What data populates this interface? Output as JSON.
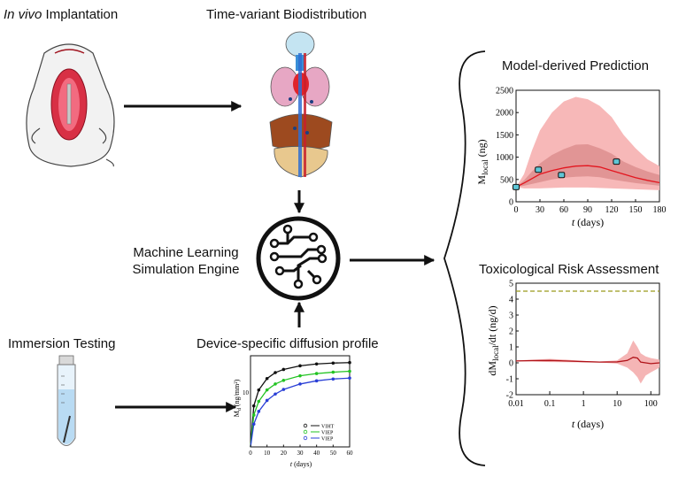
{
  "labels": {
    "implant_em": "In vivo",
    "implant_rest": " Implantation",
    "biodistribution": "Time-variant Biodistribution",
    "ml_line1": "Machine Learning",
    "ml_line2": "Simulation Engine",
    "immersion": "Immersion Testing",
    "diffusion": "Device-specific diffusion profile"
  },
  "prediction_chart": {
    "title": "Model-derived Prediction",
    "ylabel": "M_local (ng)",
    "ylabel_main": "M",
    "ylabel_sub": "local",
    "ylabel_unit": " (ng)",
    "xlabel_var": "t",
    "xlabel_unit": " (days)",
    "xticks": [
      "0",
      "30",
      "60",
      "90",
      "120",
      "150",
      "180"
    ],
    "yticks": [
      "0",
      "500",
      "1000",
      "1500",
      "2000",
      "2500"
    ]
  },
  "risk_chart": {
    "title": "Toxicological Risk Assessment",
    "ylabel_pre": "dM",
    "ylabel_sub": "local",
    "ylabel_post": "/dt (ng/d)",
    "xlabel_var": "t",
    "xlabel_unit": " (days)",
    "xticks": [
      "0.01",
      "0.1",
      "1",
      "10",
      "100"
    ],
    "yticks": [
      "-2",
      "-1",
      "0",
      "1",
      "2",
      "3",
      "4",
      "5"
    ]
  },
  "diffusion_chart": {
    "ylabel": "M_d (ng/mm²)",
    "ylabel_main": "M",
    "ylabel_sub": "d",
    "ylabel_unit": " (ng/mm²)",
    "xlabel_var": "t",
    "xlabel_unit": " (days)",
    "xticks": [
      "0",
      "10",
      "20",
      "30",
      "40",
      "50",
      "60"
    ],
    "ytick": "10",
    "legend": [
      "VIHT",
      "VIEP",
      "VIEP"
    ]
  },
  "chart_data": [
    {
      "type": "line",
      "title": "Model-derived Prediction",
      "xlabel": "t (days)",
      "ylabel": "M_local (ng)",
      "xlim": [
        0,
        180
      ],
      "ylim": [
        0,
        2500
      ],
      "series": [
        {
          "x": [
            0,
            10,
            20,
            30,
            45,
            60,
            75,
            90,
            105,
            120,
            135,
            150,
            165,
            180
          ],
          "values": [
            330,
            420,
            520,
            620,
            700,
            760,
            800,
            810,
            780,
            700,
            620,
            540,
            480,
            430
          ]
        }
      ],
      "points": {
        "x": [
          0,
          28,
          57,
          126
        ],
        "values": [
          330,
          720,
          600,
          900
        ]
      },
      "band_outer_upper": [
        330,
        620,
        1150,
        1600,
        2000,
        2250,
        2350,
        2300,
        2150,
        1900,
        1500,
        1200,
        950,
        800
      ],
      "band_outer_lower": [
        330,
        300,
        300,
        300,
        310,
        320,
        320,
        320,
        310,
        300,
        290,
        280,
        270,
        260
      ],
      "band_inner_upper": [
        330,
        480,
        680,
        860,
        1050,
        1180,
        1280,
        1290,
        1200,
        1080,
        900,
        780,
        680,
        600
      ],
      "band_inner_lower": [
        330,
        360,
        400,
        440,
        500,
        540,
        560,
        570,
        550,
        500,
        460,
        420,
        390,
        360
      ],
      "grid": false
    },
    {
      "type": "line",
      "title": "Toxicological Risk Assessment",
      "xlabel": "t (days)",
      "ylabel": "dM_local/dt (ng/d)",
      "xscale": "log",
      "xlim": [
        0.01,
        180
      ],
      "ylim": [
        -2,
        5
      ],
      "threshold": 4.5,
      "series": [
        {
          "x": [
            0.01,
            0.03,
            0.1,
            0.3,
            1,
            3,
            10,
            20,
            30,
            40,
            50,
            70,
            100,
            180
          ],
          "values": [
            0.12,
            0.14,
            0.15,
            0.12,
            0.08,
            0.05,
            0.06,
            0.15,
            0.35,
            0.3,
            0.05,
            0.0,
            -0.05,
            0.0
          ]
        }
      ],
      "band_upper": [
        0.15,
        0.2,
        0.25,
        0.2,
        0.12,
        0.08,
        0.15,
        0.6,
        1.4,
        1.0,
        0.6,
        0.4,
        0.3,
        0.2
      ],
      "band_lower": [
        0.1,
        0.08,
        0.05,
        0.04,
        0.03,
        0.02,
        -0.05,
        -0.3,
        -0.6,
        -0.9,
        -1.3,
        -0.8,
        -0.6,
        -0.3
      ],
      "grid": false
    },
    {
      "type": "line",
      "xlabel": "t (days)",
      "ylabel": "M_d (ng/mm²)",
      "xlim": [
        0,
        60
      ],
      "ylim": [
        0,
        20
      ],
      "legend_position": "bottom-right",
      "series": [
        {
          "name": "VIHT",
          "color": "#111111",
          "x": [
            0,
            2,
            5,
            10,
            15,
            20,
            30,
            40,
            50,
            60
          ],
          "values": [
            0,
            9,
            12.5,
            15,
            16.3,
            17,
            17.8,
            18.2,
            18.4,
            18.5
          ]
        },
        {
          "name": "VIEP",
          "color": "#22c322",
          "x": [
            0,
            2,
            5,
            10,
            15,
            20,
            30,
            40,
            50,
            60
          ],
          "values": [
            0,
            7,
            10,
            12.5,
            13.8,
            14.6,
            15.6,
            16.1,
            16.4,
            16.6
          ]
        },
        {
          "name": "VIEP",
          "color": "#2a3fd6",
          "x": [
            0,
            2,
            5,
            10,
            15,
            20,
            30,
            40,
            50,
            60
          ],
          "values": [
            0,
            5,
            7.8,
            10.2,
            11.6,
            12.6,
            13.8,
            14.5,
            14.9,
            15.1
          ]
        }
      ]
    }
  ]
}
